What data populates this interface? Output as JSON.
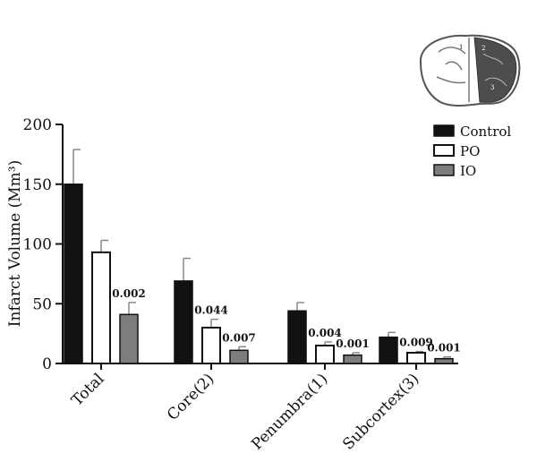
{
  "chart_data": {
    "type": "bar",
    "ylabel": "Infarct Volume (Mm³)",
    "ylim": [
      0,
      200
    ],
    "yticks": [
      0,
      50,
      100,
      150,
      200
    ],
    "categories": [
      "Total",
      "Core(2)",
      "Penumbra(1)",
      "Subcortex(3)"
    ],
    "series": [
      {
        "name": "Control",
        "color": "#111111",
        "values": [
          150,
          69,
          44,
          22
        ],
        "errors": [
          29,
          19,
          7,
          4
        ],
        "labels": [
          "",
          "",
          "",
          ""
        ]
      },
      {
        "name": "PO",
        "color": "#ffffff",
        "values": [
          93,
          30,
          15,
          9
        ],
        "errors": [
          10,
          7,
          3,
          1
        ],
        "labels": [
          "",
          "0.044",
          "0.004",
          "0.009"
        ]
      },
      {
        "name": "IO",
        "color": "#7d7d7d",
        "values": [
          41,
          11,
          7,
          4
        ],
        "errors": [
          10,
          3,
          2,
          1.5
        ],
        "labels": [
          "0.002",
          "0.007",
          "0.001",
          "0.001"
        ]
      }
    ],
    "legend_position": "top-right",
    "grid": false
  },
  "brain_roi_labels": [
    "1",
    "2",
    "3"
  ]
}
